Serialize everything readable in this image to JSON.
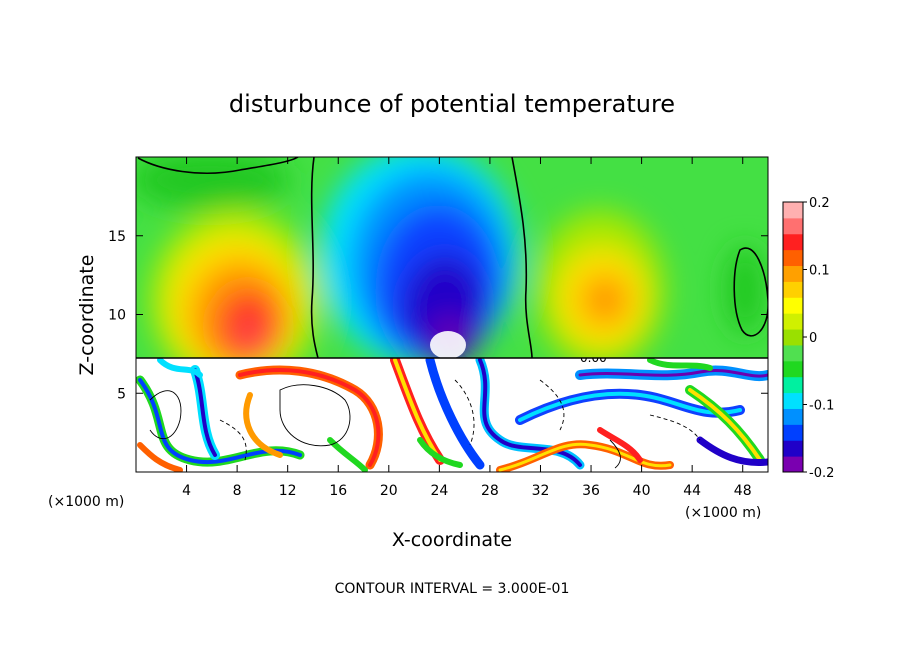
{
  "chart_data": {
    "type": "heatmap",
    "title": "disturbunce of potential temperature",
    "xlabel": "X-coordinate",
    "ylabel": "Z-coordinate",
    "x_unit": "(×1000 m)",
    "y_unit": "(×1000 m)",
    "xlim": [
      0,
      50
    ],
    "ylim": [
      0,
      20
    ],
    "x_ticks": [
      "4",
      "8",
      "12",
      "16",
      "20",
      "24",
      "28",
      "32",
      "36",
      "40",
      "44",
      "48"
    ],
    "y_ticks": [
      "5",
      "10",
      "15"
    ],
    "contour_note": "CONTOUR INTERVAL = 3.000E-01",
    "contour_label": "0.00",
    "colorbar": {
      "min": -0.2,
      "max": 0.2,
      "tick_labels": [
        "0.2",
        "0.1",
        "0",
        "-0.1",
        "-0.2"
      ],
      "colors": [
        "#7a00b0",
        "#2000c8",
        "#0040ff",
        "#0090ff",
        "#00e0ff",
        "#00f0a0",
        "#20d820",
        "#50e050",
        "#9ae000",
        "#d0f000",
        "#ffff00",
        "#ffd000",
        "#ffa000",
        "#ff6000",
        "#ff2020",
        "#ff7070",
        "#ffb0b0"
      ]
    },
    "features": [
      {
        "label": "warm anomaly",
        "x": 8,
        "z": 10,
        "value": 0.15
      },
      {
        "label": "cold anomaly",
        "x": 24,
        "z": 12,
        "value": -0.18
      },
      {
        "label": "warm anomaly",
        "x": 36,
        "z": 11,
        "value": 0.1
      },
      {
        "label": "turbulent layer",
        "z_range": [
          0,
          7.2
        ]
      }
    ]
  }
}
